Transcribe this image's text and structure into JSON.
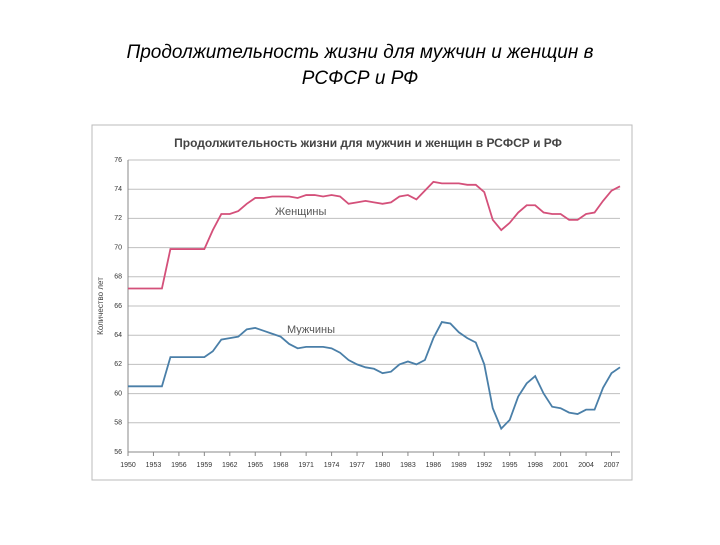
{
  "slide_title": "Продолжительность жизни для мужчин и женщин в РСФСР и РФ",
  "chart_data": {
    "type": "line",
    "title": "Продолжительность жизни для мужчин и женщин в РСФСР и РФ",
    "y_label": "Количество лет",
    "annotations": [
      "Женщины",
      "Мужчины"
    ],
    "x": [
      1950,
      1951,
      1952,
      1953,
      1954,
      1955,
      1956,
      1957,
      1958,
      1959,
      1960,
      1961,
      1962,
      1963,
      1964,
      1965,
      1966,
      1967,
      1968,
      1969,
      1970,
      1971,
      1972,
      1973,
      1974,
      1975,
      1976,
      1977,
      1978,
      1979,
      1980,
      1981,
      1982,
      1983,
      1984,
      1985,
      1986,
      1987,
      1988,
      1989,
      1990,
      1991,
      1992,
      1993,
      1994,
      1995,
      1996,
      1997,
      1998,
      1999,
      2000,
      2001,
      2002,
      2003,
      2004,
      2005,
      2006,
      2007,
      2008
    ],
    "series": [
      {
        "color": "#d4507a",
        "values": [
          67.2,
          67.2,
          67.2,
          67.2,
          67.2,
          69.9,
          69.9,
          69.9,
          69.9,
          69.9,
          71.2,
          72.3,
          72.3,
          72.5,
          73.0,
          73.4,
          73.4,
          73.5,
          73.5,
          73.5,
          73.4,
          73.6,
          73.6,
          73.5,
          73.6,
          73.5,
          73.0,
          73.1,
          73.2,
          73.1,
          73.0,
          73.1,
          73.5,
          73.6,
          73.3,
          73.9,
          74.5,
          74.4,
          74.4,
          74.4,
          74.3,
          74.3,
          73.8,
          71.9,
          71.2,
          71.7,
          72.4,
          72.9,
          72.9,
          72.4,
          72.3,
          72.3,
          71.9,
          71.9,
          72.3,
          72.4,
          73.2,
          73.9,
          74.2
        ]
      },
      {
        "color": "#4a7fa8",
        "values": [
          60.5,
          60.5,
          60.5,
          60.5,
          60.5,
          62.5,
          62.5,
          62.5,
          62.5,
          62.5,
          62.9,
          63.7,
          63.8,
          63.9,
          64.4,
          64.5,
          64.3,
          64.1,
          63.9,
          63.4,
          63.1,
          63.2,
          63.2,
          63.2,
          63.1,
          62.8,
          62.3,
          62.0,
          61.8,
          61.7,
          61.4,
          61.5,
          62.0,
          62.2,
          62.0,
          62.3,
          63.8,
          64.9,
          64.8,
          64.2,
          63.8,
          63.5,
          62.0,
          59.0,
          57.6,
          58.2,
          59.8,
          60.7,
          61.2,
          60.0,
          59.1,
          59.0,
          58.7,
          58.6,
          58.9,
          58.9,
          60.4,
          61.4,
          61.8
        ]
      }
    ],
    "xlim": [
      1950,
      2008
    ],
    "xticks": [
      1950,
      1953,
      1956,
      1959,
      1962,
      1965,
      1968,
      1971,
      1974,
      1977,
      1980,
      1983,
      1986,
      1989,
      1992,
      1995,
      1998,
      2001,
      2004,
      2007
    ],
    "ylim": [
      56,
      76
    ],
    "yticks": [
      56,
      58,
      60,
      62,
      64,
      66,
      68,
      70,
      72,
      74,
      76
    ],
    "grid": true
  }
}
